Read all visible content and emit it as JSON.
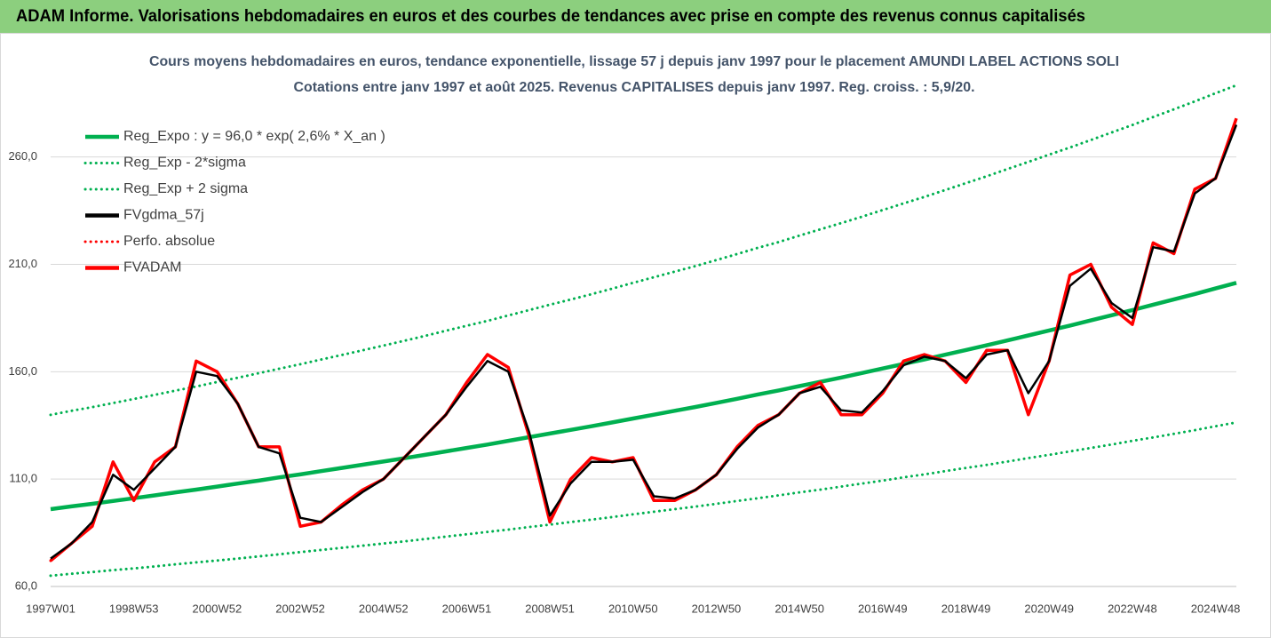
{
  "chart_data": {
    "type": "line",
    "title": "ADAM Informe. Valorisations hebdomadaires en euros et des courbes de tendances avec prise en compte des revenus connus capitalisés",
    "subtitle": [
      "Cours moyens hebdomadaires en euros, tendance exponentielle, lissage 57 j depuis janv 1997 pour le placement AMUNDI LABEL ACTIONS SOLI",
      "Cotations entre janv 1997 et août 2025.  Revenus CAPITALISES depuis janv 1997. Reg. croiss. : 5,9/20."
    ],
    "categories": [
      "1997W01",
      null,
      null,
      null,
      "1998W53",
      null,
      null,
      null,
      "2000W52",
      null,
      null,
      null,
      "2002W52",
      null,
      null,
      null,
      "2004W52",
      null,
      null,
      null,
      "2006W51",
      null,
      null,
      null,
      "2008W51",
      null,
      null,
      null,
      "2010W50",
      null,
      null,
      null,
      "2012W50",
      null,
      null,
      null,
      "2014W50",
      null,
      null,
      null,
      "2016W49",
      null,
      null,
      null,
      "2018W49",
      null,
      null,
      null,
      "2020W49",
      null,
      null,
      null,
      "2022W48",
      null,
      null,
      null,
      "2024W48",
      null
    ],
    "ylim": [
      60,
      300
    ],
    "yticks": [
      {
        "value": 60,
        "label": "60,0"
      },
      {
        "value": 110,
        "label": "110,0"
      },
      {
        "value": 160,
        "label": "160,0"
      },
      {
        "value": 210,
        "label": "210,0"
      },
      {
        "value": 260,
        "label": "260,0"
      }
    ],
    "grid": true,
    "legend": "top-left",
    "series": [
      {
        "name": "Reg_Expo : y = 96,0 * exp( 2,6% *  X_an )",
        "color": "#00b050",
        "style": "solid",
        "values": [
          96.0,
          97.3,
          98.5,
          99.8,
          101.1,
          102.4,
          103.8,
          105.1,
          106.5,
          107.9,
          109.3,
          110.8,
          112.2,
          113.7,
          115.2,
          116.7,
          118.2,
          119.7,
          121.3,
          122.9,
          124.5,
          126.1,
          127.8,
          129.5,
          131.2,
          132.9,
          134.6,
          136.4,
          138.2,
          140.0,
          141.8,
          143.6,
          145.5,
          147.4,
          149.4,
          151.3,
          153.3,
          155.3,
          157.3,
          159.4,
          161.5,
          163.6,
          165.7,
          167.9,
          170.1,
          172.3,
          174.6,
          176.9,
          179.2,
          181.5,
          183.9,
          186.3,
          188.7,
          191.2,
          193.7,
          196.2,
          198.8,
          201.4
        ]
      },
      {
        "name": "Reg_Exp - 2*sigma",
        "color": "#00b050",
        "style": "dotted",
        "values": [
          65.0,
          65.9,
          66.7,
          67.6,
          68.4,
          69.3,
          70.3,
          71.2,
          72.1,
          73.0,
          74.0,
          75.0,
          76.0,
          77.0,
          78.0,
          79.0,
          80.0,
          81.0,
          82.1,
          83.2,
          84.3,
          85.4,
          86.5,
          87.7,
          88.8,
          90.0,
          91.1,
          92.3,
          93.6,
          94.8,
          96.0,
          97.2,
          98.5,
          99.8,
          101.1,
          102.4,
          103.8,
          105.1,
          106.5,
          107.9,
          109.3,
          110.8,
          112.2,
          113.7,
          115.2,
          116.6,
          118.2,
          119.8,
          121.3,
          122.9,
          124.5,
          126.1,
          127.8,
          129.4,
          131.1,
          132.8,
          134.6,
          136.4
        ]
      },
      {
        "name": "Reg_Exp + 2 sigma",
        "color": "#00b050",
        "style": "dotted",
        "values": [
          139.9,
          141.8,
          143.5,
          145.4,
          147.3,
          149.2,
          151.2,
          153.1,
          155.2,
          157.2,
          159.3,
          161.4,
          163.5,
          165.7,
          167.8,
          170.0,
          172.2,
          174.4,
          176.7,
          179.1,
          181.4,
          183.7,
          186.2,
          188.7,
          191.2,
          193.6,
          196.1,
          198.7,
          201.4,
          204.0,
          206.6,
          209.2,
          212.0,
          214.8,
          217.7,
          220.4,
          223.4,
          226.3,
          229.2,
          232.2,
          235.3,
          238.4,
          241.4,
          244.6,
          247.8,
          251.0,
          254.4,
          257.7,
          261.1,
          264.4,
          267.9,
          271.4,
          274.9,
          278.6,
          282.2,
          285.9,
          289.7,
          293.4
        ]
      },
      {
        "name": "FVgdma_57j",
        "color": "#000000",
        "style": "solid",
        "values": [
          73,
          80,
          90,
          112,
          105,
          115,
          125,
          160,
          158,
          145,
          125,
          122,
          92,
          90,
          97,
          104,
          110,
          120,
          130,
          140,
          153,
          165,
          160,
          132,
          93,
          108,
          118,
          118,
          119,
          102,
          101,
          105,
          112,
          124,
          134,
          140,
          150,
          153,
          142,
          141,
          151,
          163,
          167,
          165,
          157,
          168,
          170,
          150,
          165,
          200,
          208,
          192,
          185,
          218,
          216,
          243,
          250,
          275
        ]
      },
      {
        "name": "Perfo. absolue",
        "color": "#ff0000",
        "style": "dotted",
        "values": [
          72,
          80,
          88,
          118,
          100,
          118,
          125,
          165,
          160,
          145,
          125,
          125,
          88,
          90,
          98,
          105,
          110,
          120,
          130,
          140,
          155,
          168,
          162,
          130,
          90,
          110,
          120,
          118,
          120,
          100,
          100,
          105,
          112,
          125,
          135,
          140,
          150,
          155,
          140,
          140,
          150,
          165,
          168,
          165,
          155,
          170,
          170,
          140,
          165,
          205,
          210,
          190,
          182,
          220,
          215,
          245,
          250,
          278
        ]
      },
      {
        "name": "FVADAM",
        "color": "#ff0000",
        "style": "solid",
        "values": [
          72,
          80,
          88,
          118,
          100,
          118,
          125,
          165,
          160,
          145,
          125,
          125,
          88,
          90,
          98,
          105,
          110,
          120,
          130,
          140,
          155,
          168,
          162,
          130,
          90,
          110,
          120,
          118,
          120,
          100,
          100,
          105,
          112,
          125,
          135,
          140,
          150,
          155,
          140,
          140,
          150,
          165,
          168,
          165,
          155,
          170,
          170,
          140,
          165,
          205,
          210,
          190,
          182,
          220,
          215,
          245,
          250,
          278
        ]
      }
    ]
  }
}
